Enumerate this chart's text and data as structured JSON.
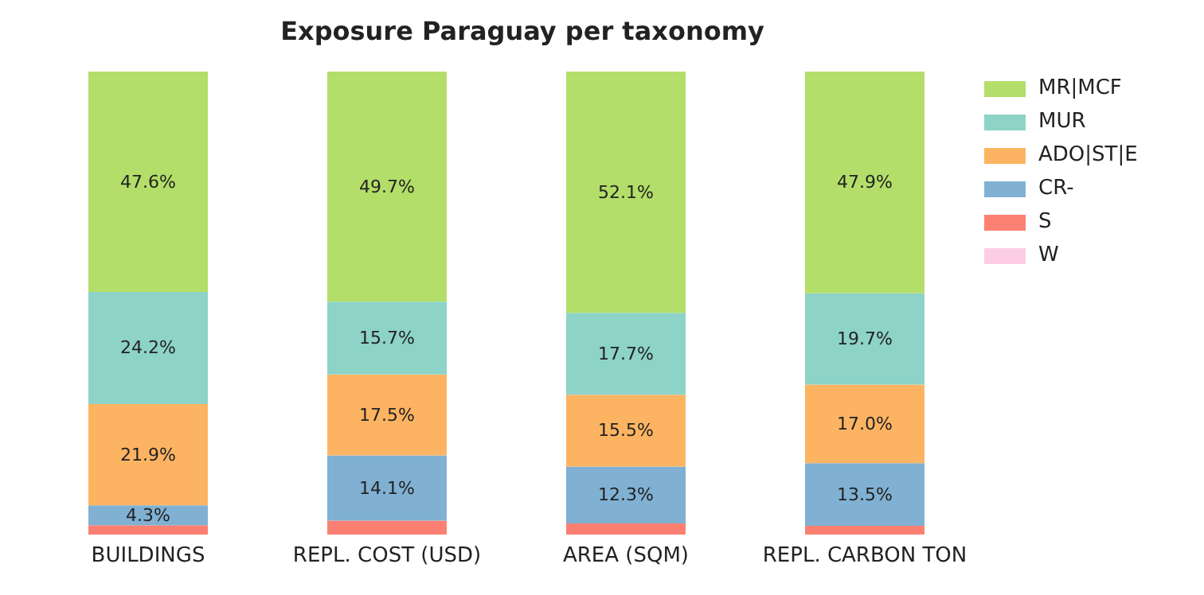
{
  "chart_data": {
    "type": "bar",
    "title": "Exposure Paraguay per taxonomy",
    "categories": [
      "BUILDINGS",
      "REPL. COST (USD)",
      "AREA (SQM)",
      "REPL. CARBON TON"
    ],
    "stacked": true,
    "ylim": [
      0,
      100
    ],
    "tick_labels": "x",
    "grid": false,
    "legend": "top right",
    "series": [
      {
        "name": "W",
        "color": "#fccde5",
        "values": [
          0,
          0,
          0,
          0
        ],
        "value_labels": [
          null,
          null,
          null,
          null
        ]
      },
      {
        "name": "S",
        "color": "#fb8072",
        "values": [
          2.0,
          3.0,
          2.4,
          1.9
        ],
        "value_labels": [
          null,
          null,
          null,
          null
        ]
      },
      {
        "name": "CR-",
        "color": "#80b1d3",
        "values": [
          4.3,
          14.1,
          12.3,
          13.5
        ],
        "value_labels": [
          "4.3%",
          "14.1%",
          "12.3%",
          "13.5%"
        ]
      },
      {
        "name": "ADO|ST|E",
        "color": "#fdb462",
        "values": [
          21.9,
          17.5,
          15.5,
          17.0
        ],
        "value_labels": [
          "21.9%",
          "17.5%",
          "15.5%",
          "17.0%"
        ]
      },
      {
        "name": "MUR",
        "color": "#8dd3c7",
        "values": [
          24.2,
          15.7,
          17.7,
          19.7
        ],
        "value_labels": [
          "24.2%",
          "15.7%",
          "17.7%",
          "19.7%"
        ]
      },
      {
        "name": "MR|MCF",
        "color": "#b3de69",
        "values": [
          47.6,
          49.7,
          52.1,
          47.9
        ],
        "value_labels": [
          "47.6%",
          "49.7%",
          "52.1%",
          "47.9%"
        ]
      }
    ]
  }
}
